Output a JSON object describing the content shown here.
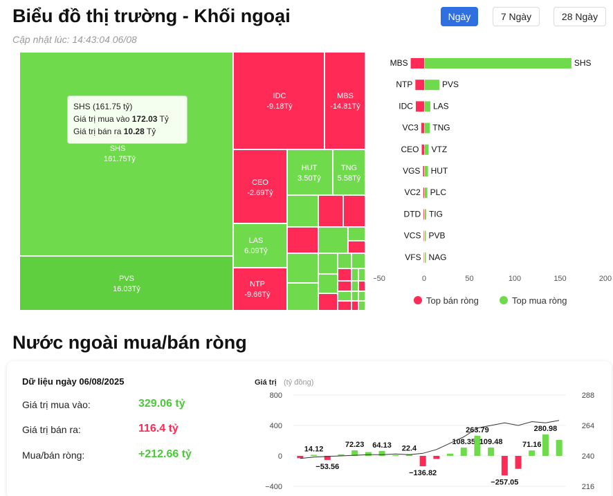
{
  "header": {
    "title": "Biểu đồ thị trường - Khối ngoại",
    "updated": "Cập nhật lúc: 14:43:04 06/08",
    "periods": [
      {
        "label": "Ngày",
        "active": true
      },
      {
        "label": "7 Ngày",
        "active": false
      },
      {
        "label": "28 Ngày",
        "active": false
      }
    ]
  },
  "treemap": {
    "tiles": [
      {
        "code": "SHS",
        "value": "161.75Tỷ"
      },
      {
        "code": "PVS",
        "value": "16.03Tỷ"
      },
      {
        "code": "IDC",
        "value": "-9.18Tỷ"
      },
      {
        "code": "MBS",
        "value": "-14.81Tỷ"
      },
      {
        "code": "CEO",
        "value": "-2.69Tỷ"
      },
      {
        "code": "HUT",
        "value": "3.50Tỷ"
      },
      {
        "code": "TNG",
        "value": "5.58Tỷ"
      },
      {
        "code": "LAS",
        "value": "6.09Tỷ"
      },
      {
        "code": "NTP",
        "value": "-9.66Tỷ"
      }
    ],
    "tooltip": {
      "title": "SHS (161.75 tỷ)",
      "buy_label": "Giá trị mua vào",
      "buy_value": "172.03",
      "sell_label": "Giá trị bán ra",
      "sell_value": "10.28",
      "unit": "Tỷ"
    }
  },
  "chart_data": [
    {
      "type": "bar",
      "orientation": "horizontal",
      "sell_codes": [
        "MBS",
        "NTP",
        "IDC",
        "VC3",
        "CEO",
        "VGS",
        "VC2",
        "DTD",
        "VCS",
        "VFS"
      ],
      "buy_codes": [
        "SHS",
        "PVS",
        "LAS",
        "TNG",
        "VTZ",
        "HUT",
        "PLC",
        "TIG",
        "PVB",
        "NAG"
      ],
      "series": [
        {
          "name": "Top bán ròng",
          "values": [
            -14.81,
            -9.66,
            -9.18,
            -3.2,
            -2.69,
            -1.2,
            -0.9,
            -0.6,
            -0.4,
            -0.3
          ]
        },
        {
          "name": "Top mua ròng",
          "values": [
            161.75,
            16.03,
            6.09,
            5.58,
            4.2,
            3.5,
            2.8,
            1.5,
            0.8,
            0.5
          ]
        }
      ],
      "xlim": [
        -50,
        200
      ],
      "xticks": [
        "−50",
        "0",
        "50",
        "100",
        "150",
        "200"
      ],
      "colors": {
        "sell": "#ff2a55",
        "buy": "#6fdb4c"
      }
    },
    {
      "type": "bar",
      "title": "Giá trị",
      "ylabel_unit": "(tỷ đồng)",
      "ylim": [
        -400,
        800
      ],
      "yticks": [
        "800",
        "400",
        "0",
        "−400"
      ],
      "y2ticks": [
        "288",
        "264",
        "240",
        "216"
      ],
      "y2lim": [
        216,
        288
      ],
      "values": [
        -30,
        14.12,
        -53.56,
        20,
        72.23,
        50,
        64.13,
        10,
        22.4,
        -136.82,
        -40,
        30,
        108.35,
        263.79,
        109.48,
        -257.05,
        -170,
        71.16,
        280.98,
        210
      ],
      "data_labels": [
        "",
        "14.12",
        "−53.56",
        "",
        "72.23",
        "",
        "64.13",
        "",
        "22.4",
        "−136.82",
        "",
        "",
        "108.35",
        "263.79",
        "109.48",
        "−257.05",
        "",
        "71.16",
        "280.98",
        ""
      ],
      "line": [
        238,
        239,
        239.5,
        240,
        240.5,
        241,
        241,
        241.5,
        241,
        242,
        245,
        250,
        255,
        262,
        264,
        266,
        264,
        267,
        266,
        268
      ]
    }
  ],
  "legend": {
    "sell": "Top bán ròng",
    "buy": "Top mua ròng"
  },
  "section2": {
    "title": "Nước ngoài mua/bán ròng",
    "date_title": "Dữ liệu ngày 06/08/2025",
    "rows": [
      {
        "label": "Giá trị mua vào:",
        "value": "329.06 tỷ",
        "color": "#4cc93a"
      },
      {
        "label": "Giá trị bán ra:",
        "value": "116.4 tỷ",
        "color": "#ff2a55"
      },
      {
        "label": "Mua/bán ròng:",
        "value": "+212.66 tỷ",
        "color": "#4cc93a"
      }
    ]
  }
}
